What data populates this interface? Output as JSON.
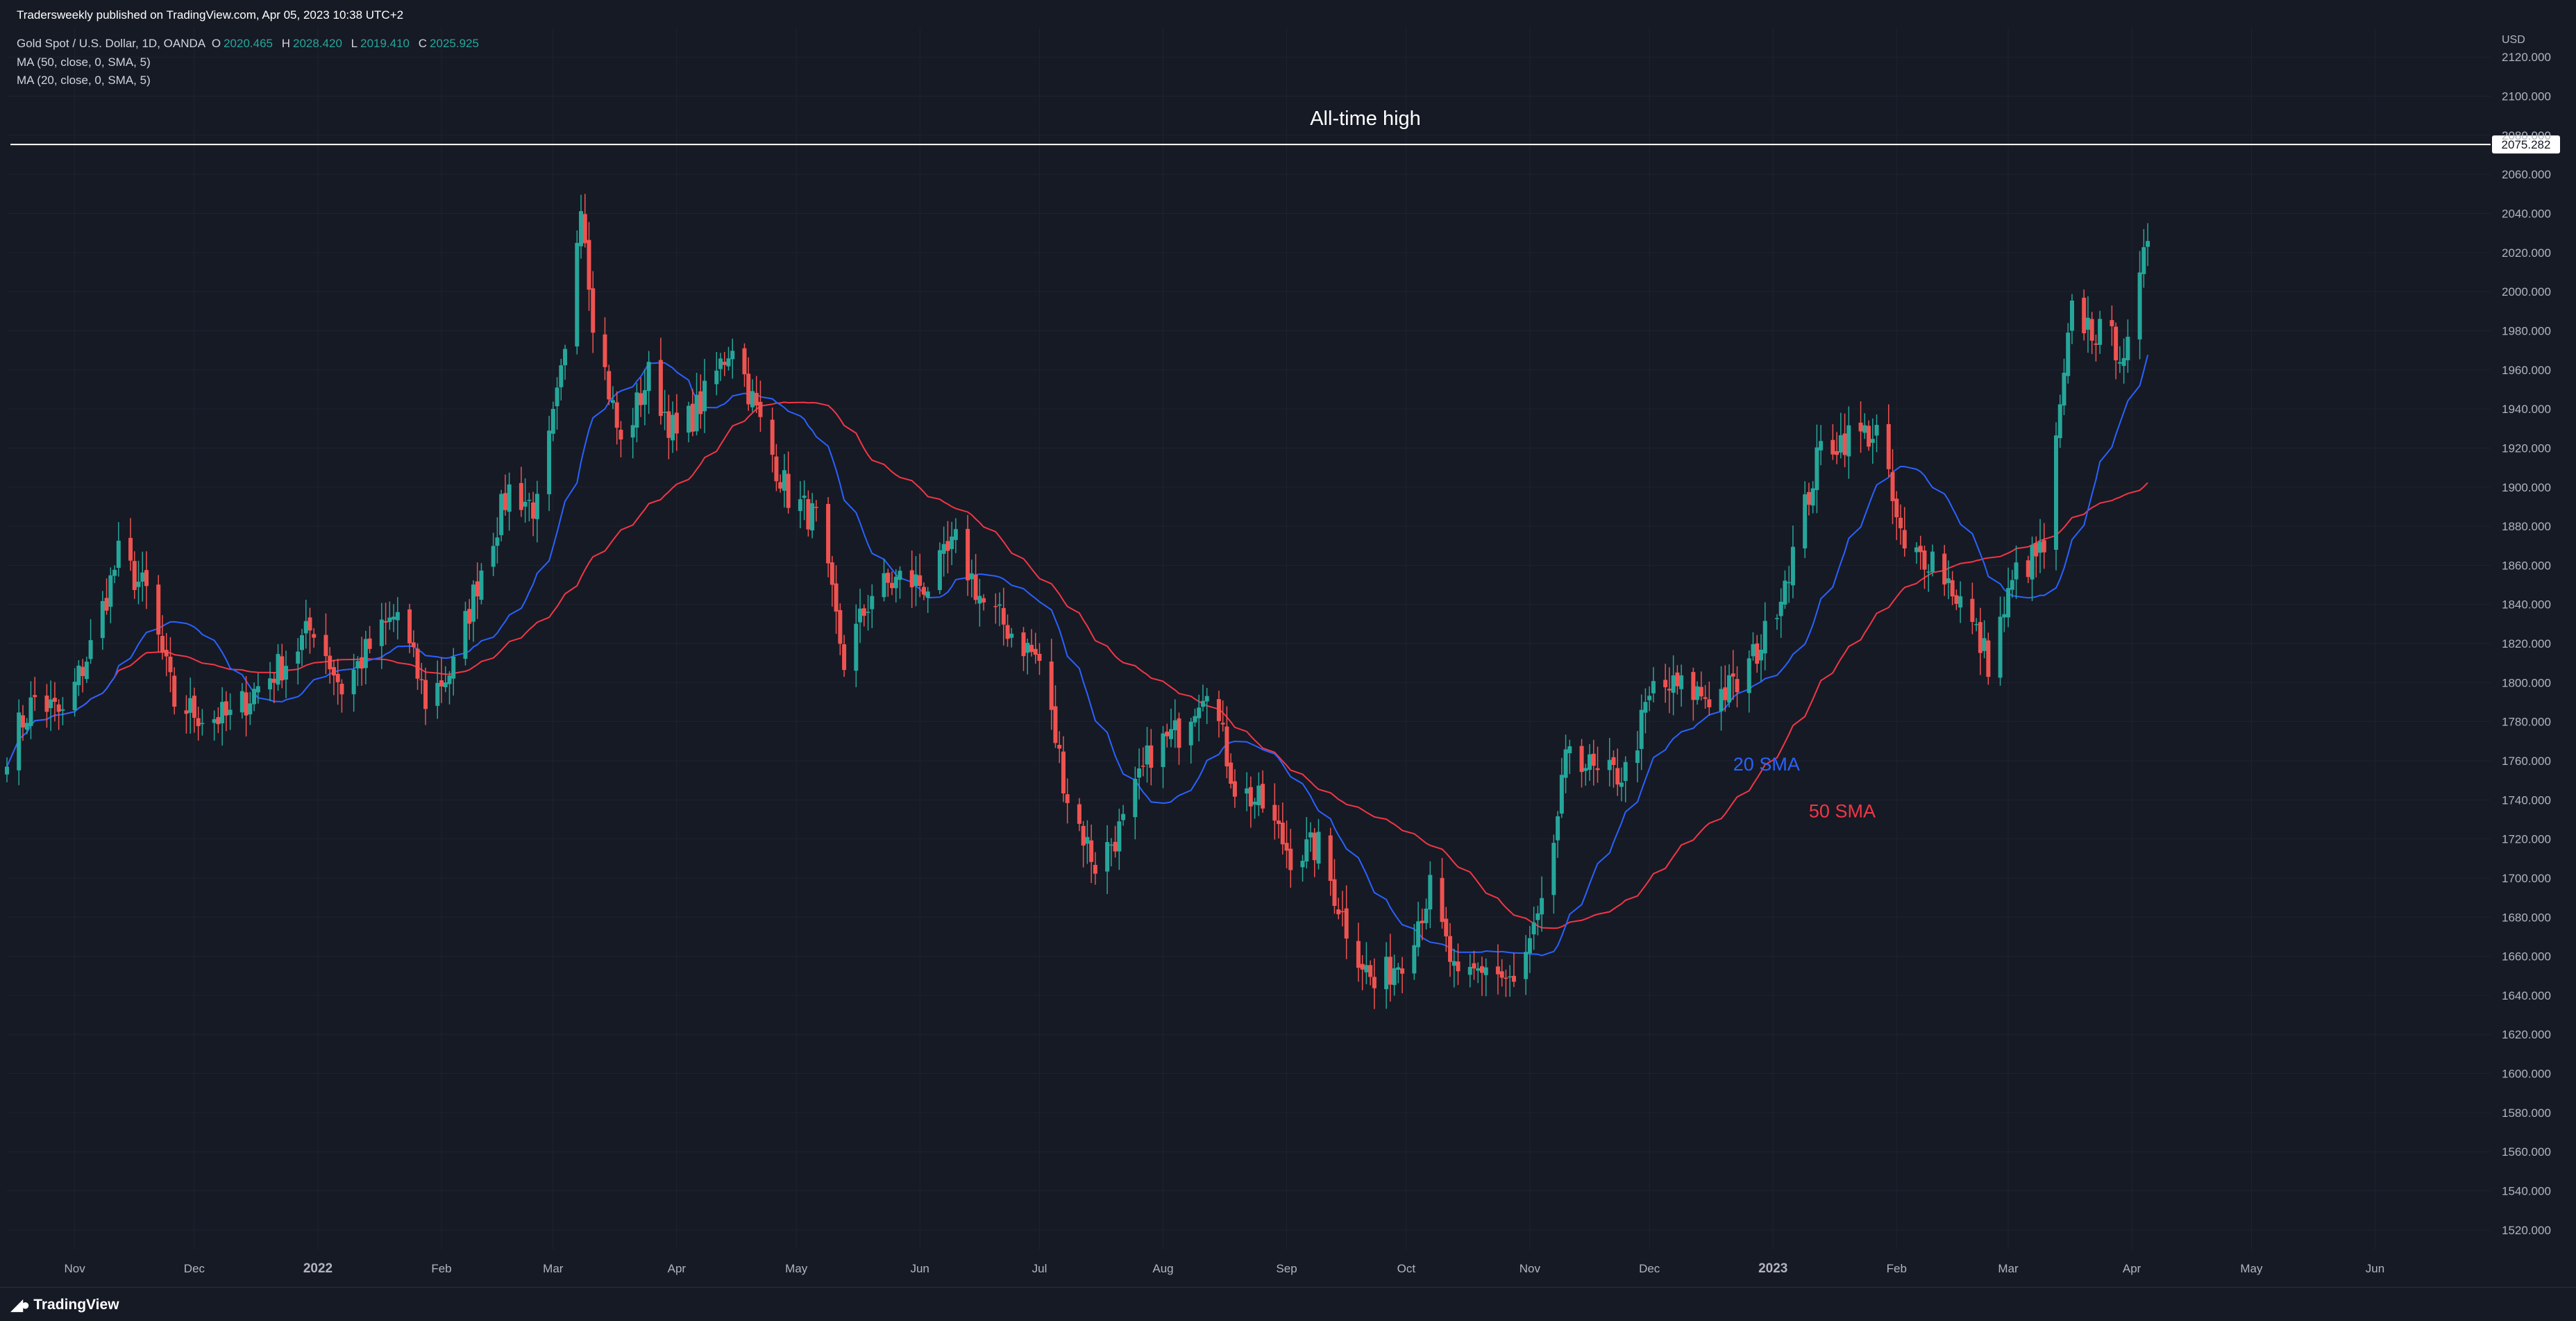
{
  "header": {
    "published": "Tradersweekly published on TradingView.com, Apr 05, 2023 10:38 UTC+2",
    "symbol": "Gold Spot / U.S. Dollar, 1D, OANDA",
    "ohlc": [
      {
        "label": "O",
        "value": "2020.465"
      },
      {
        "label": "H",
        "value": "2028.420"
      },
      {
        "label": "L",
        "value": "2019.410"
      },
      {
        "label": "C",
        "value": "2025.925"
      }
    ],
    "indicators": [
      "MA (50, close, 0, SMA, 5)",
      "MA (20, close, 0, SMA, 5)"
    ]
  },
  "footer": {
    "brand": "TradingView",
    "logo": "tradingview-logo-icon"
  },
  "colors": {
    "background": "#161a25",
    "up": "#26a69a",
    "down": "#ef5350",
    "sma20": "#2962ff",
    "sma50": "#f23645",
    "ath_line": "#ffffff",
    "grid": "#1f2330",
    "axis_text": "#b2b5be"
  },
  "chart_data": {
    "type": "candlestick",
    "title": "",
    "currency": "USD",
    "ylim": [
      1510,
      2135
    ],
    "yticks": [
      1520,
      1540,
      1560,
      1580,
      1600,
      1620,
      1640,
      1660,
      1680,
      1700,
      1720,
      1740,
      1760,
      1780,
      1800,
      1820,
      1840,
      1860,
      1880,
      1900,
      1920,
      1940,
      1960,
      1980,
      2000,
      2020,
      2040,
      2060,
      2080,
      2100,
      2120
    ],
    "ytick_labels": [
      "1520.000",
      "1540.000",
      "1560.000",
      "1580.000",
      "1600.000",
      "1620.000",
      "1640.000",
      "1660.000",
      "1680.000",
      "1700.000",
      "1720.000",
      "1740.000",
      "1760.000",
      "1780.000",
      "1800.000",
      "1820.000",
      "1840.000",
      "1860.000",
      "1880.000",
      "1900.000",
      "1920.000",
      "1940.000",
      "1960.000",
      "1980.000",
      "2000.000",
      "2020.000",
      "2040.000",
      "2060.000",
      "2080.000",
      "2100.000",
      "2120.000"
    ],
    "xlim": [
      "2021-10-15",
      "2023-06-30"
    ],
    "xticks": [
      {
        "date": "2021-11-01",
        "label": "Nov"
      },
      {
        "date": "2021-12-01",
        "label": "Dec"
      },
      {
        "date": "2022-01-01",
        "label": "2022"
      },
      {
        "date": "2022-02-01",
        "label": "Feb"
      },
      {
        "date": "2022-03-01",
        "label": "Mar"
      },
      {
        "date": "2022-04-01",
        "label": "Apr"
      },
      {
        "date": "2022-05-01",
        "label": "May"
      },
      {
        "date": "2022-06-01",
        "label": "Jun"
      },
      {
        "date": "2022-07-01",
        "label": "Jul"
      },
      {
        "date": "2022-08-01",
        "label": "Aug"
      },
      {
        "date": "2022-09-01",
        "label": "Sep"
      },
      {
        "date": "2022-10-01",
        "label": "Oct"
      },
      {
        "date": "2022-11-01",
        "label": "Nov"
      },
      {
        "date": "2022-12-01",
        "label": "Dec"
      },
      {
        "date": "2023-01-01",
        "label": "2023"
      },
      {
        "date": "2023-02-01",
        "label": "Feb"
      },
      {
        "date": "2023-03-01",
        "label": "Mar"
      },
      {
        "date": "2023-04-01",
        "label": "Apr"
      },
      {
        "date": "2023-05-01",
        "label": "May"
      },
      {
        "date": "2023-06-01",
        "label": "Jun"
      }
    ],
    "ath": {
      "value": 2075.282,
      "label": "2075.282",
      "annotation": "All-time high"
    },
    "annotations": [
      {
        "text": "20 SMA",
        "date": "2022-12-22",
        "value": 1755,
        "color": "#2962ff"
      },
      {
        "text": "50 SMA",
        "date": "2023-01-10",
        "value": 1731,
        "color": "#f23645"
      }
    ],
    "grid": true,
    "series_close": [
      [
        "2021-10-15",
        1766
      ],
      [
        "2021-10-22",
        1792
      ],
      [
        "2021-10-29",
        1783
      ],
      [
        "2021-11-05",
        1818
      ],
      [
        "2021-11-12",
        1865
      ],
      [
        "2021-11-19",
        1846
      ],
      [
        "2021-11-26",
        1790
      ],
      [
        "2021-12-03",
        1783
      ],
      [
        "2021-12-10",
        1782
      ],
      [
        "2021-12-17",
        1798
      ],
      [
        "2021-12-24",
        1811
      ],
      [
        "2021-12-31",
        1829
      ],
      [
        "2022-01-07",
        1797
      ],
      [
        "2022-01-14",
        1818
      ],
      [
        "2022-01-21",
        1836
      ],
      [
        "2022-01-28",
        1791
      ],
      [
        "2022-02-04",
        1808
      ],
      [
        "2022-02-11",
        1859
      ],
      [
        "2022-02-18",
        1899
      ],
      [
        "2022-02-25",
        1889
      ],
      [
        "2022-03-04",
        1966
      ],
      [
        "2022-03-08",
        2050
      ],
      [
        "2022-03-11",
        1988
      ],
      [
        "2022-03-18",
        1921
      ],
      [
        "2022-03-25",
        1957
      ],
      [
        "2022-04-01",
        1925
      ],
      [
        "2022-04-08",
        1946
      ],
      [
        "2022-04-15",
        1975
      ],
      [
        "2022-04-22",
        1932
      ],
      [
        "2022-04-29",
        1896
      ],
      [
        "2022-05-06",
        1883
      ],
      [
        "2022-05-13",
        1811
      ],
      [
        "2022-05-20",
        1846
      ],
      [
        "2022-05-27",
        1853
      ],
      [
        "2022-06-03",
        1850
      ],
      [
        "2022-06-10",
        1871
      ],
      [
        "2022-06-17",
        1840
      ],
      [
        "2022-06-24",
        1826
      ],
      [
        "2022-07-01",
        1811
      ],
      [
        "2022-07-08",
        1742
      ],
      [
        "2022-07-15",
        1707
      ],
      [
        "2022-07-22",
        1727
      ],
      [
        "2022-07-29",
        1765
      ],
      [
        "2022-08-05",
        1775
      ],
      [
        "2022-08-12",
        1802
      ],
      [
        "2022-08-19",
        1747
      ],
      [
        "2022-08-26",
        1737
      ],
      [
        "2022-09-02",
        1712
      ],
      [
        "2022-09-09",
        1716
      ],
      [
        "2022-09-16",
        1675
      ],
      [
        "2022-09-23",
        1644
      ],
      [
        "2022-09-30",
        1660
      ],
      [
        "2022-10-07",
        1694
      ],
      [
        "2022-10-14",
        1644
      ],
      [
        "2022-10-21",
        1656
      ],
      [
        "2022-10-28",
        1644
      ],
      [
        "2022-11-04",
        1681
      ],
      [
        "2022-11-11",
        1770
      ],
      [
        "2022-11-18",
        1751
      ],
      [
        "2022-11-25",
        1754
      ],
      [
        "2022-12-02",
        1797
      ],
      [
        "2022-12-09",
        1797
      ],
      [
        "2022-12-16",
        1793
      ],
      [
        "2022-12-23",
        1798
      ],
      [
        "2022-12-30",
        1824
      ],
      [
        "2023-01-06",
        1866
      ],
      [
        "2023-01-13",
        1920
      ],
      [
        "2023-01-20",
        1926
      ],
      [
        "2023-01-27",
        1928
      ],
      [
        "2023-02-03",
        1865
      ],
      [
        "2023-02-10",
        1865
      ],
      [
        "2023-02-17",
        1842
      ],
      [
        "2023-02-24",
        1811
      ],
      [
        "2023-03-03",
        1856
      ],
      [
        "2023-03-10",
        1868
      ],
      [
        "2023-03-17",
        1989
      ],
      [
        "2023-03-24",
        1978
      ],
      [
        "2023-03-31",
        1969
      ],
      [
        "2023-04-05",
        2025.925
      ]
    ]
  }
}
